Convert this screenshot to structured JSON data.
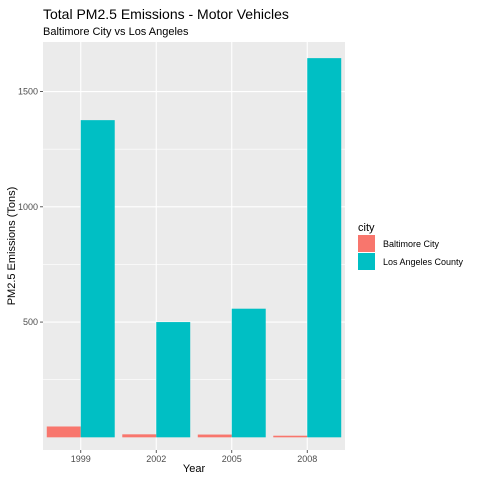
{
  "chart_data": {
    "type": "bar",
    "title": "Total PM2.5 Emissions - Motor Vehicles",
    "subtitle": "Baltimore City vs Los Angeles",
    "xlabel": "Year",
    "ylabel": "PM2.5 Emissions (Tons)",
    "categories": [
      "1999",
      "2002",
      "2005",
      "2008"
    ],
    "ylim": [
      -55,
      1715
    ],
    "yticks": [
      500,
      1000,
      1500
    ],
    "grid": true,
    "legend": {
      "title": "city",
      "position": "right"
    },
    "series": [
      {
        "name": "Baltimore City",
        "color": "#F8766D",
        "values": [
          47,
          13,
          12,
          7
        ]
      },
      {
        "name": "Los Angeles County",
        "color": "#00BFC4",
        "values": [
          1376,
          500,
          558,
          1645
        ]
      }
    ]
  }
}
